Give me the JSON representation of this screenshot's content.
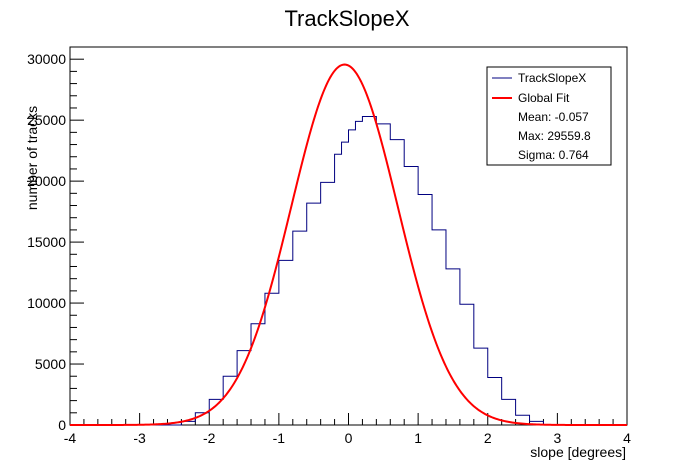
{
  "chart_data": {
    "type": "bar",
    "title": "TrackSlopeX",
    "xlabel": "slope [degrees]",
    "ylabel": "number of tracks",
    "xlim": [
      -4,
      4
    ],
    "ylim": [
      0,
      31000
    ],
    "xticks": [
      "-4",
      "-3",
      "-2",
      "-1",
      "0",
      "1",
      "2",
      "3",
      "4"
    ],
    "yticks": [
      "0",
      "5000",
      "10000",
      "15000",
      "20000",
      "25000",
      "30000"
    ],
    "grid": false,
    "legend_position": "top-right",
    "bin_edges": [
      -4.0,
      -3.8,
      -3.6,
      -3.4,
      -3.2,
      -3.0,
      -2.8,
      -2.6,
      -2.4,
      -2.2,
      -2.0,
      -1.8,
      -1.6,
      -1.4,
      -1.2,
      -1.0,
      -0.8,
      -0.6,
      -0.4,
      -0.2,
      -0.1,
      0.0,
      0.1,
      0.2,
      0.3,
      0.4,
      0.6,
      0.8,
      1.0,
      1.2,
      1.4,
      1.6,
      1.8,
      2.0,
      2.2,
      2.4,
      2.6,
      2.8,
      3.0,
      3.2,
      3.4,
      3.6,
      3.8,
      4.0
    ],
    "counts": [
      0,
      0,
      0,
      0,
      0,
      0,
      0,
      0,
      300,
      1000,
      2100,
      4000,
      6100,
      8300,
      10800,
      13500,
      15900,
      18200,
      19900,
      22200,
      23200,
      24200,
      24900,
      25300,
      25300,
      24700,
      23400,
      21200,
      18900,
      16000,
      12800,
      9900,
      6300,
      3900,
      2100,
      800,
      300,
      0,
      0,
      0,
      0,
      0,
      0
    ],
    "series": [
      {
        "name": "TrackSlopeX",
        "color": "#000080",
        "style": "histogram"
      },
      {
        "name": "Global Fit",
        "color": "#ff0000",
        "style": "gaussian"
      }
    ],
    "fit": {
      "mean": -0.057,
      "max": 29559.8,
      "sigma": 0.764
    },
    "legend": {
      "entries": [
        "TrackSlopeX",
        "Global Fit"
      ],
      "stats": [
        "Mean: -0.057",
        "Max: 29559.8",
        "Sigma: 0.764"
      ]
    }
  }
}
